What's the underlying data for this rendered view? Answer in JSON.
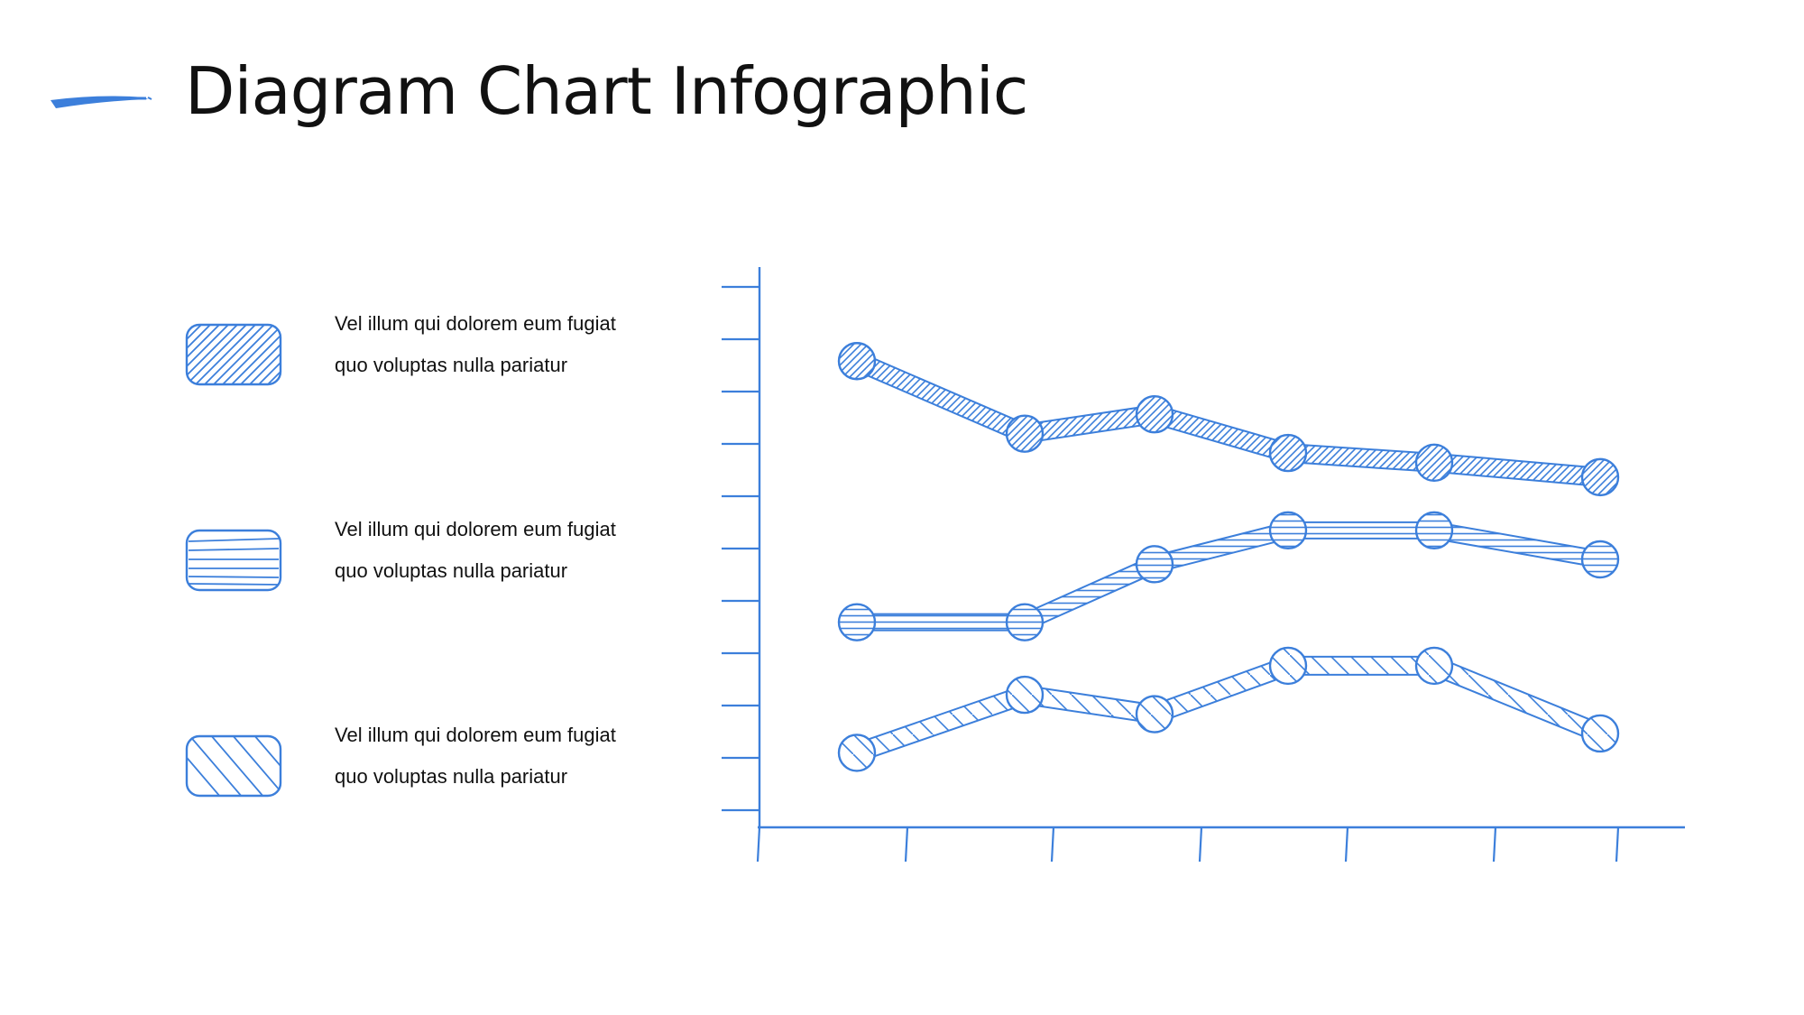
{
  "page": {
    "title": "Diagram Chart Infographic"
  },
  "colors": {
    "accent": "#3c7fdb",
    "text": "#111111",
    "background": "#ffffff"
  },
  "icons": {
    "title_mark": "brush-stroke-icon"
  },
  "legend": [
    {
      "text": "Vel illum qui dolorem eum fugiat quo voluptas nulla pariatur",
      "swatch": "diagonal-hatch-swatch-icon"
    },
    {
      "text": "Vel illum qui dolorem eum fugiat quo voluptas nulla pariatur",
      "swatch": "horizontal-hatch-swatch-icon"
    },
    {
      "text": "Vel illum qui dolorem eum fugiat quo voluptas nulla pariatur",
      "swatch": "sparse-diagonal-hatch-swatch-icon"
    }
  ],
  "chart_data": {
    "type": "line",
    "title": "",
    "xlabel": "",
    "ylabel": "",
    "ylim": [
      0,
      10
    ],
    "grid": false,
    "legend_placement": "left",
    "x": [
      1,
      2,
      3,
      4,
      5,
      6
    ],
    "series": [
      {
        "values": [
          9.1,
          7.6,
          8.0,
          7.2,
          7.0,
          6.7
        ],
        "pattern": "diagonal-dense"
      },
      {
        "values": [
          3.7,
          3.7,
          4.9,
          5.6,
          5.6,
          5.0
        ],
        "pattern": "horizontal"
      },
      {
        "values": [
          1.0,
          2.2,
          1.8,
          2.8,
          2.8,
          1.4
        ],
        "pattern": "diagonal-sparse"
      }
    ]
  }
}
